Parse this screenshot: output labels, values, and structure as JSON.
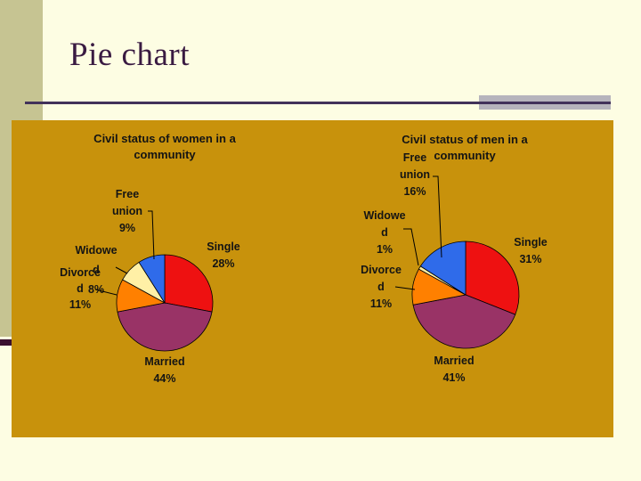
{
  "slide": {
    "title": "Pie chart"
  },
  "colors": {
    "background": "#FDFDE3",
    "left_stripe": "#C6C492",
    "accent_bar": "#3A0F2E",
    "rule_line": "#42325A",
    "rule_band": "#B6B4BC",
    "panel": "#C8920C",
    "title_text": "#3A1B42",
    "chart_text": "#141414"
  },
  "chart_data": [
    {
      "type": "pie",
      "title": "Civil status of women in a community",
      "title_display": "Civil status of women in a\ncommunity",
      "categories": [
        "Single",
        "Married",
        "Divorced",
        "Widowed",
        "Free union"
      ],
      "values": [
        28,
        44,
        11,
        8,
        9
      ],
      "unit": "%",
      "start_angle_deg": 0,
      "direction": "clockwise",
      "slice_colors": [
        "#EE1111",
        "#993366",
        "#FF8000",
        "#FFF0A6",
        "#2F6BEA"
      ],
      "legend": "none",
      "label_style": "category-and-percent",
      "labels": {
        "single": "Single\n28%",
        "married": "Married\n44%",
        "divorced": "Divorce\nd\n11%",
        "widowed": "Widowe\nd\n8%",
        "free_union": "Free\nunion\n9%"
      }
    },
    {
      "type": "pie",
      "title": "Civil status of men in a community",
      "title_display": "Civil status of men in a community",
      "categories": [
        "Single",
        "Married",
        "Divorced",
        "Widowed",
        "Free union"
      ],
      "values": [
        31,
        41,
        11,
        1,
        16
      ],
      "unit": "%",
      "start_angle_deg": 0,
      "direction": "clockwise",
      "slice_colors": [
        "#EE1111",
        "#993366",
        "#FF8000",
        "#FFF0A6",
        "#2F6BEA"
      ],
      "legend": "none",
      "label_style": "category-and-percent",
      "labels": {
        "single": "Single\n31%",
        "married": "Married\n41%",
        "divorced": "Divorce\nd\n11%",
        "widowed": "Widowe\nd\n1%",
        "free_union": "Free\nunion\n16%"
      }
    }
  ]
}
